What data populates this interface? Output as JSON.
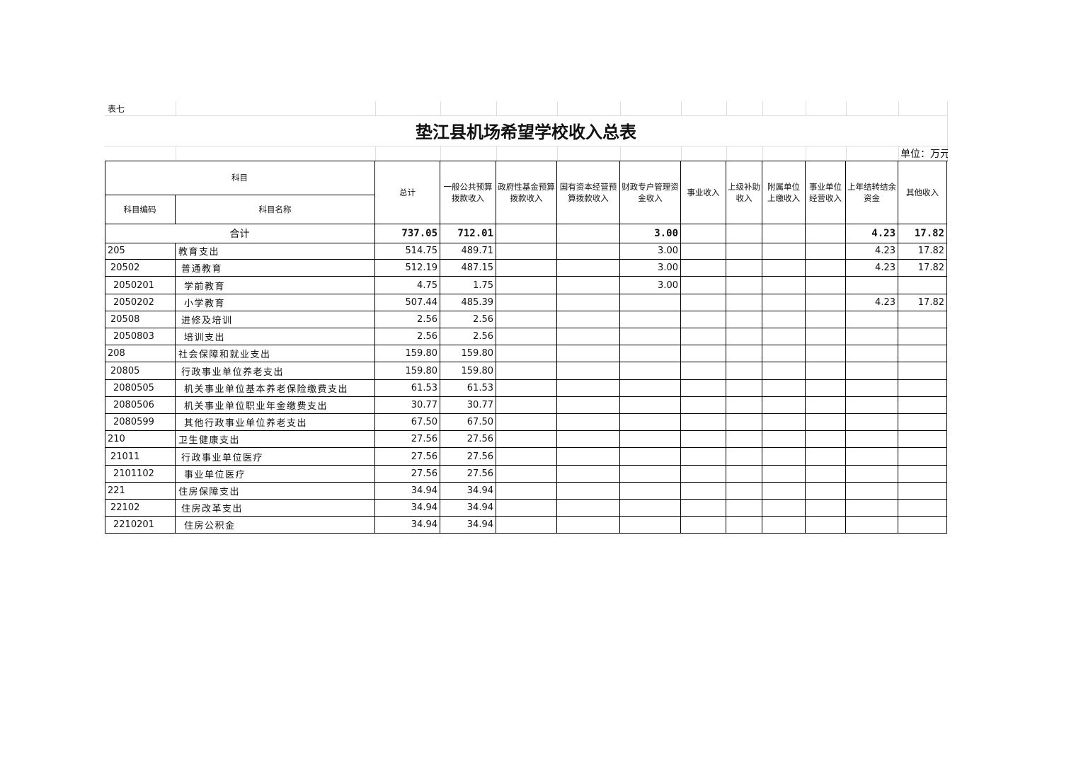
{
  "header": {
    "label": "表七",
    "title": "垫江县机场希望学校收入总表",
    "unit": "单位：万元"
  },
  "table": {
    "group_header": "科目",
    "sub_headers": [
      "科目编码",
      "科目名称"
    ],
    "columns": [
      "总计",
      "一般公共预算拨款收入",
      "政府性基金预算拨款收入",
      "国有资本经营预算拨款收入",
      "财政专户管理资金收入",
      "事业收入",
      "上级补助收入",
      "附属单位上缴收入",
      "事业单位经营收入",
      "上年结转结余资金",
      "其他收入"
    ],
    "total": {
      "label": "合计",
      "values": [
        "737.05",
        "712.01",
        null,
        null,
        "3.00",
        null,
        null,
        null,
        null,
        "4.23",
        "17.82"
      ]
    },
    "rows": [
      {
        "code": "205",
        "name": "教育支出",
        "values": [
          "514.75",
          "489.71",
          null,
          null,
          "3.00",
          null,
          null,
          null,
          null,
          "4.23",
          "17.82"
        ]
      },
      {
        "code": "20502",
        "name": "普通教育",
        "values": [
          "512.19",
          "487.15",
          null,
          null,
          "3.00",
          null,
          null,
          null,
          null,
          "4.23",
          "17.82"
        ]
      },
      {
        "code": "2050201",
        "name": "学前教育",
        "values": [
          "4.75",
          "1.75",
          null,
          null,
          "3.00",
          null,
          null,
          null,
          null,
          null,
          null
        ]
      },
      {
        "code": "2050202",
        "name": "小学教育",
        "values": [
          "507.44",
          "485.39",
          null,
          null,
          null,
          null,
          null,
          null,
          null,
          "4.23",
          "17.82"
        ]
      },
      {
        "code": "20508",
        "name": "进修及培训",
        "values": [
          "2.56",
          "2.56",
          null,
          null,
          null,
          null,
          null,
          null,
          null,
          null,
          null
        ]
      },
      {
        "code": "2050803",
        "name": "培训支出",
        "values": [
          "2.56",
          "2.56",
          null,
          null,
          null,
          null,
          null,
          null,
          null,
          null,
          null
        ]
      },
      {
        "code": "208",
        "name": "社会保障和就业支出",
        "values": [
          "159.80",
          "159.80",
          null,
          null,
          null,
          null,
          null,
          null,
          null,
          null,
          null
        ]
      },
      {
        "code": "20805",
        "name": "行政事业单位养老支出",
        "values": [
          "159.80",
          "159.80",
          null,
          null,
          null,
          null,
          null,
          null,
          null,
          null,
          null
        ]
      },
      {
        "code": "2080505",
        "name": "机关事业单位基本养老保险缴费支出",
        "values": [
          "61.53",
          "61.53",
          null,
          null,
          null,
          null,
          null,
          null,
          null,
          null,
          null
        ]
      },
      {
        "code": "2080506",
        "name": "机关事业单位职业年金缴费支出",
        "values": [
          "30.77",
          "30.77",
          null,
          null,
          null,
          null,
          null,
          null,
          null,
          null,
          null
        ]
      },
      {
        "code": "2080599",
        "name": "其他行政事业单位养老支出",
        "values": [
          "67.50",
          "67.50",
          null,
          null,
          null,
          null,
          null,
          null,
          null,
          null,
          null
        ]
      },
      {
        "code": "210",
        "name": "卫生健康支出",
        "values": [
          "27.56",
          "27.56",
          null,
          null,
          null,
          null,
          null,
          null,
          null,
          null,
          null
        ]
      },
      {
        "code": "21011",
        "name": "行政事业单位医疗",
        "values": [
          "27.56",
          "27.56",
          null,
          null,
          null,
          null,
          null,
          null,
          null,
          null,
          null
        ]
      },
      {
        "code": "2101102",
        "name": "事业单位医疗",
        "values": [
          "27.56",
          "27.56",
          null,
          null,
          null,
          null,
          null,
          null,
          null,
          null,
          null
        ]
      },
      {
        "code": "221",
        "name": "住房保障支出",
        "values": [
          "34.94",
          "34.94",
          null,
          null,
          null,
          null,
          null,
          null,
          null,
          null,
          null
        ]
      },
      {
        "code": "22102",
        "name": "住房改革支出",
        "values": [
          "34.94",
          "34.94",
          null,
          null,
          null,
          null,
          null,
          null,
          null,
          null,
          null
        ]
      },
      {
        "code": "2210201",
        "name": "住房公积金",
        "values": [
          "34.94",
          "34.94",
          null,
          null,
          null,
          null,
          null,
          null,
          null,
          null,
          null
        ]
      }
    ]
  }
}
